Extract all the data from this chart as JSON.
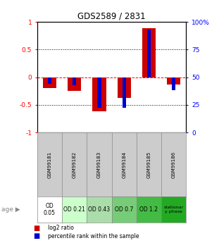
{
  "title": "GDS2589 / 2831",
  "samples": [
    "GSM99181",
    "GSM99182",
    "GSM99183",
    "GSM99184",
    "GSM99185",
    "GSM99186"
  ],
  "age_labels": [
    "OD\n0.05",
    "OD 0.21",
    "OD 0.43",
    "OD 0.7",
    "OD 1.2",
    "stationar\ny phase"
  ],
  "age_colors": [
    "#ffffff",
    "#ccffcc",
    "#aaddaa",
    "#77cc77",
    "#44bb44",
    "#22aa22"
  ],
  "log2_ratio": [
    -0.2,
    -0.25,
    -0.62,
    -0.38,
    0.88,
    -0.13
  ],
  "percentile_rank_pct": [
    44,
    43,
    22,
    22,
    93,
    38
  ],
  "bar_color_red": "#cc0000",
  "bar_color_blue": "#0000cc",
  "ylim_left": [
    -1,
    1
  ],
  "ylim_right": [
    0,
    100
  ],
  "yticks_left": [
    -1,
    -0.5,
    0,
    0.5,
    1
  ],
  "ytick_labels_left": [
    "-1",
    "-0.5",
    "0",
    "0.5",
    "1"
  ],
  "yticks_right": [
    0,
    25,
    50,
    75,
    100
  ],
  "ytick_labels_right": [
    "0",
    "25",
    "50",
    "75",
    "100%"
  ],
  "hline_dotted_vals": [
    -0.5,
    0.5
  ],
  "hline_red_val": 0,
  "red_bar_width": 0.55,
  "blue_bar_width": 0.15,
  "bg_color": "#ffffff",
  "sample_bg_color": "#cccccc"
}
